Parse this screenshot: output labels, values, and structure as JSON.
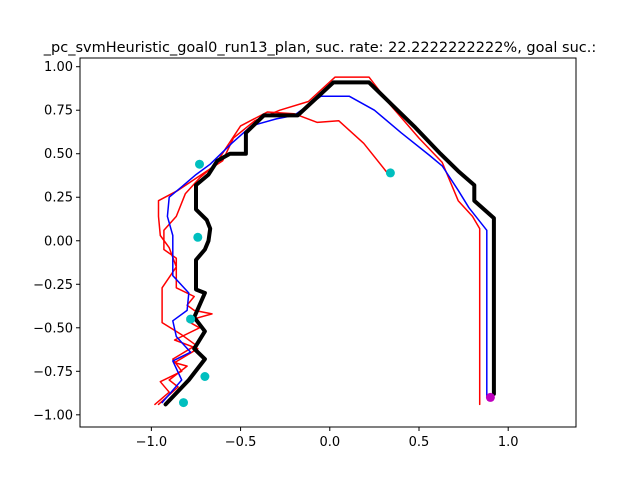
{
  "chart_data": {
    "type": "line",
    "title": "_pc_svmHeuristic_goal0_run13_plan, suc. rate: 22.2222222222%, goal suc.:",
    "xlabel": "",
    "ylabel": "",
    "xlim": [
      -1.4,
      1.38
    ],
    "ylim": [
      -1.07,
      1.05
    ],
    "x_ticks": [
      -1.0,
      -0.5,
      0.0,
      0.5,
      1.0
    ],
    "x_tick_labels": [
      "−1.0",
      "−0.5",
      "0.0",
      "0.5",
      "1.0"
    ],
    "y_ticks": [
      1.0,
      0.75,
      0.5,
      0.25,
      0.0,
      -0.25,
      -0.5,
      -0.75,
      -1.0
    ],
    "y_tick_labels": [
      "1.00",
      "0.75",
      "0.50",
      "0.25",
      "0.00",
      "−0.25",
      "−0.50",
      "−0.75",
      "−1.00"
    ],
    "grid": false,
    "series": [
      {
        "color": "#ff0000",
        "width": 1.5,
        "points": [
          [
            -0.96,
            -0.94
          ],
          [
            -0.85,
            -0.84
          ],
          [
            -0.9,
            -0.8
          ],
          [
            -0.8,
            -0.72
          ],
          [
            -0.87,
            -0.7
          ],
          [
            -0.74,
            -0.62
          ],
          [
            -0.87,
            -0.57
          ],
          [
            -0.73,
            -0.5
          ],
          [
            -0.8,
            -0.46
          ],
          [
            -0.66,
            -0.42
          ],
          [
            -0.76,
            -0.4
          ],
          [
            -0.8,
            -0.37
          ],
          [
            -0.76,
            -0.32
          ],
          [
            -0.86,
            -0.27
          ],
          [
            -0.86,
            -0.1
          ],
          [
            -0.93,
            -0.05
          ],
          [
            -0.93,
            0.06
          ],
          [
            -0.86,
            0.14
          ],
          [
            -0.81,
            0.27
          ],
          [
            -0.73,
            0.36
          ],
          [
            -0.64,
            0.44
          ],
          [
            -0.59,
            0.52
          ],
          [
            -0.5,
            0.66
          ],
          [
            -0.35,
            0.74
          ],
          [
            -0.2,
            0.73
          ],
          [
            -0.07,
            0.68
          ],
          [
            0.05,
            0.69
          ],
          [
            0.19,
            0.56
          ],
          [
            0.33,
            0.38
          ]
        ]
      },
      {
        "color": "#ff0000",
        "width": 1.5,
        "points": [
          [
            -0.98,
            -0.94
          ],
          [
            -0.9,
            -0.87
          ],
          [
            -0.95,
            -0.81
          ],
          [
            -0.83,
            -0.75
          ],
          [
            -0.88,
            -0.68
          ],
          [
            -0.75,
            -0.6
          ],
          [
            -0.83,
            -0.54
          ],
          [
            -0.94,
            -0.47
          ],
          [
            -0.94,
            -0.27
          ],
          [
            -0.86,
            -0.15
          ],
          [
            -0.9,
            -0.04
          ],
          [
            -0.95,
            0.03
          ],
          [
            -0.96,
            0.14
          ],
          [
            -0.96,
            0.23
          ],
          [
            -0.85,
            0.29
          ],
          [
            -0.69,
            0.4
          ],
          [
            -0.6,
            0.46
          ],
          [
            -0.54,
            0.59
          ],
          [
            -0.42,
            0.69
          ],
          [
            -0.28,
            0.75
          ],
          [
            -0.12,
            0.8
          ],
          [
            0.03,
            0.94
          ],
          [
            0.22,
            0.94
          ],
          [
            0.34,
            0.78
          ],
          [
            0.5,
            0.59
          ],
          [
            0.63,
            0.45
          ],
          [
            0.72,
            0.23
          ],
          [
            0.8,
            0.14
          ],
          [
            0.84,
            0.07
          ],
          [
            0.84,
            -0.94
          ]
        ]
      },
      {
        "color": "#0000ff",
        "width": 1.5,
        "points": [
          [
            -0.94,
            -0.93
          ],
          [
            -0.83,
            -0.8
          ],
          [
            -0.88,
            -0.69
          ],
          [
            -0.78,
            -0.64
          ],
          [
            -0.86,
            -0.55
          ],
          [
            -0.88,
            -0.46
          ],
          [
            -0.8,
            -0.4
          ],
          [
            -0.79,
            -0.3
          ],
          [
            -0.88,
            -0.2
          ],
          [
            -0.88,
            0.03
          ],
          [
            -0.91,
            0.14
          ],
          [
            -0.9,
            0.25
          ],
          [
            -0.83,
            0.31
          ],
          [
            -0.75,
            0.38
          ],
          [
            -0.67,
            0.44
          ],
          [
            -0.55,
            0.56
          ],
          [
            -0.44,
            0.66
          ],
          [
            -0.3,
            0.7
          ],
          [
            -0.2,
            0.72
          ],
          [
            -0.05,
            0.83
          ],
          [
            0.11,
            0.83
          ],
          [
            0.25,
            0.75
          ],
          [
            0.4,
            0.62
          ],
          [
            0.56,
            0.49
          ],
          [
            0.63,
            0.43
          ],
          [
            0.72,
            0.29
          ],
          [
            0.78,
            0.19
          ],
          [
            0.88,
            0.06
          ],
          [
            0.88,
            -0.9
          ]
        ]
      },
      {
        "color": "#000000",
        "width": 4,
        "points": [
          [
            -0.92,
            -0.94
          ],
          [
            -0.79,
            -0.8
          ],
          [
            -0.7,
            -0.68
          ],
          [
            -0.76,
            -0.62
          ],
          [
            -0.7,
            -0.52
          ],
          [
            -0.76,
            -0.44
          ],
          [
            -0.7,
            -0.3
          ],
          [
            -0.75,
            -0.28
          ],
          [
            -0.75,
            -0.11
          ],
          [
            -0.7,
            -0.05
          ],
          [
            -0.68,
            0.0
          ],
          [
            -0.67,
            0.07
          ],
          [
            -0.69,
            0.12
          ],
          [
            -0.75,
            0.18
          ],
          [
            -0.75,
            0.32
          ],
          [
            -0.68,
            0.38
          ],
          [
            -0.63,
            0.46
          ],
          [
            -0.56,
            0.5
          ],
          [
            -0.47,
            0.5
          ],
          [
            -0.47,
            0.62
          ],
          [
            -0.37,
            0.72
          ],
          [
            -0.18,
            0.72
          ],
          [
            0.02,
            0.91
          ],
          [
            0.22,
            0.91
          ],
          [
            0.35,
            0.78
          ],
          [
            0.48,
            0.65
          ],
          [
            0.62,
            0.5
          ],
          [
            0.72,
            0.4
          ],
          [
            0.81,
            0.32
          ],
          [
            0.81,
            0.23
          ],
          [
            0.92,
            0.13
          ],
          [
            0.92,
            -0.88
          ]
        ]
      }
    ],
    "markers": [
      {
        "x": -0.73,
        "y": 0.44,
        "color": "#00bfbf"
      },
      {
        "x": -0.74,
        "y": 0.02,
        "color": "#00bfbf"
      },
      {
        "x": -0.78,
        "y": -0.45,
        "color": "#00bfbf"
      },
      {
        "x": -0.7,
        "y": -0.78,
        "color": "#00bfbf"
      },
      {
        "x": -0.82,
        "y": -0.93,
        "color": "#00bfbf"
      },
      {
        "x": 0.34,
        "y": 0.39,
        "color": "#00bfbf"
      },
      {
        "x": 0.9,
        "y": -0.9,
        "color": "#bf00bf"
      }
    ]
  }
}
